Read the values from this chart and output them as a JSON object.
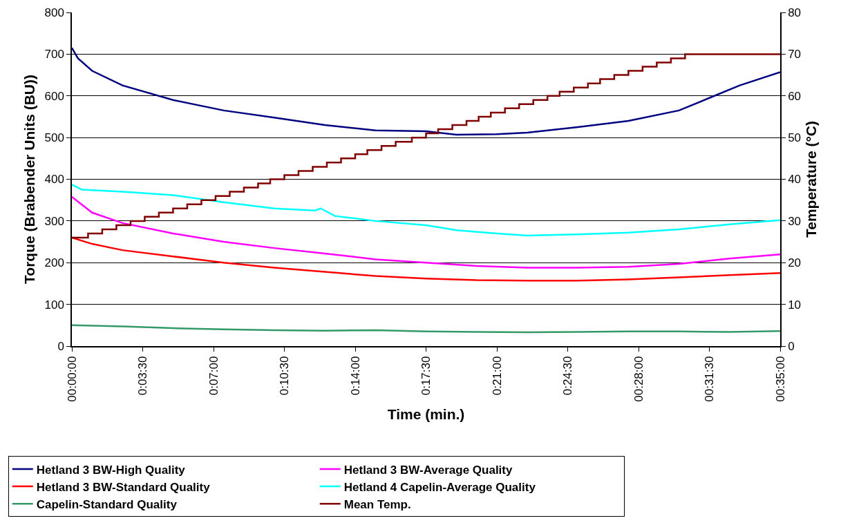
{
  "chart_data": {
    "type": "line",
    "xlabel": "Time (min.)",
    "ylabel": "Torque (Brabender Units (BU))",
    "y2label": "Temperature (°C)",
    "xlim": [
      0,
      35
    ],
    "xticks": [
      {
        "value": 0,
        "label": "00:00:00"
      },
      {
        "value": 3.5,
        "label": "0:03:30"
      },
      {
        "value": 7,
        "label": "0:07:00"
      },
      {
        "value": 10.5,
        "label": "0:10:30"
      },
      {
        "value": 14,
        "label": "0:14:00"
      },
      {
        "value": 17.5,
        "label": "0:17:30"
      },
      {
        "value": 21,
        "label": "0:21:00"
      },
      {
        "value": 24.5,
        "label": "0:24:30"
      },
      {
        "value": 28,
        "label": "00:28:00"
      },
      {
        "value": 31.5,
        "label": "00:31:30"
      },
      {
        "value": 35,
        "label": "00:35:00"
      }
    ],
    "ylim": [
      0,
      800
    ],
    "yticks": [
      0,
      100,
      200,
      300,
      400,
      500,
      600,
      700,
      800
    ],
    "y2lim": [
      0,
      80
    ],
    "y2ticks": [
      0,
      10,
      20,
      30,
      40,
      50,
      60,
      70,
      80
    ],
    "grid": "y",
    "legend": "bottom",
    "marker": "none",
    "line_style": "solid",
    "series": [
      {
        "name": "Hetland 3 BW-High Quality",
        "color": "#000080",
        "x": [
          0,
          0.3,
          1,
          2.5,
          5,
          7.5,
          10,
          12.5,
          15,
          17.5,
          19,
          21,
          22.5,
          25,
          27.5,
          30,
          31.5,
          33,
          35
        ],
        "values": [
          715,
          690,
          660,
          625,
          590,
          565,
          548,
          530,
          517,
          515,
          507,
          508,
          512,
          525,
          540,
          565,
          595,
          625,
          657
        ]
      },
      {
        "name": "Hetland 3 BW-Average Quality",
        "color": "#ff00ff",
        "x": [
          0,
          1,
          2.5,
          5,
          7.5,
          10,
          12.5,
          15,
          17.5,
          20,
          22.5,
          25,
          27.5,
          30,
          32.5,
          35
        ],
        "values": [
          358,
          320,
          295,
          270,
          250,
          235,
          222,
          208,
          200,
          192,
          188,
          188,
          190,
          197,
          210,
          220
        ]
      },
      {
        "name": "Hetland 3 BW-Standard Quality",
        "color": "#ff0000",
        "x": [
          0,
          1,
          2.5,
          5,
          7.5,
          10,
          12.5,
          15,
          17.5,
          20,
          22.5,
          25,
          27.5,
          30,
          32.5,
          35
        ],
        "values": [
          260,
          245,
          230,
          215,
          200,
          188,
          178,
          168,
          162,
          158,
          157,
          157,
          160,
          165,
          170,
          175
        ]
      },
      {
        "name": "Hetland 4 Capelin-Average Quality",
        "color": "#00ffff",
        "x": [
          0,
          0.5,
          2.5,
          5,
          7.5,
          10,
          12,
          12.3,
          13,
          15,
          17.5,
          19,
          21,
          22.5,
          25,
          27.5,
          30,
          32.5,
          35
        ],
        "values": [
          387,
          375,
          370,
          362,
          345,
          330,
          325,
          330,
          312,
          300,
          290,
          278,
          270,
          265,
          268,
          272,
          280,
          292,
          302
        ]
      },
      {
        "name": "Capelin-Standard Quality",
        "color": "#339966",
        "x": [
          0,
          2.5,
          5,
          7.5,
          10,
          12.5,
          15,
          17.5,
          20,
          22.5,
          25,
          27.5,
          30,
          32.5,
          35
        ],
        "values": [
          50,
          47,
          43,
          40,
          38,
          37,
          38,
          35,
          34,
          33,
          34,
          35,
          35,
          34,
          36
        ]
      },
      {
        "name": "Mean Temp.",
        "color": "#800000",
        "type": "step",
        "axis": "y2",
        "x": [
          0,
          0.8,
          1.5,
          2.2,
          2.9,
          3.6,
          4.3,
          5.0,
          5.7,
          6.4,
          7.1,
          7.8,
          8.5,
          9.2,
          9.8,
          10.5,
          11.2,
          11.9,
          12.6,
          13.3,
          14.0,
          14.6,
          15.3,
          16.0,
          16.8,
          17.5,
          18.1,
          18.8,
          19.5,
          20.1,
          20.7,
          21.4,
          22.1,
          22.8,
          23.5,
          24.1,
          24.8,
          25.5,
          26.1,
          26.8,
          27.5,
          28.2,
          28.9,
          29.6,
          30.3,
          35
        ],
        "values": [
          26,
          27,
          28,
          29,
          30,
          31,
          32,
          33,
          34,
          35,
          36,
          37,
          38,
          39,
          40,
          41,
          42,
          43,
          44,
          45,
          46,
          47,
          48,
          49,
          50,
          51,
          52,
          53,
          54,
          55,
          56,
          57,
          58,
          59,
          60,
          61,
          62,
          63,
          64,
          65,
          66,
          67,
          68,
          69,
          70,
          70
        ]
      }
    ]
  }
}
